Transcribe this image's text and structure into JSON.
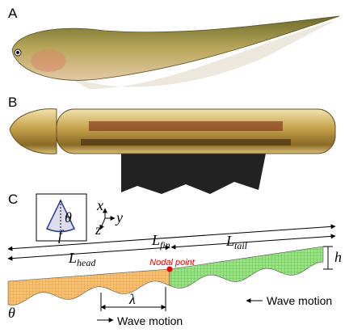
{
  "panels": [
    {
      "label": "A"
    },
    {
      "label": "B"
    },
    {
      "label": "C"
    }
  ],
  "inset": {
    "angle": "θ",
    "frequency": "f"
  },
  "axes": {
    "x": "x",
    "y": "y",
    "z": "z"
  },
  "dimensions": {
    "fin": {
      "symbol": "L",
      "sub": "fin"
    },
    "head": {
      "symbol": "L",
      "sub": "head"
    },
    "tail": {
      "symbol": "L",
      "sub": "tail"
    },
    "height": "h",
    "wavelength": "λ",
    "angle": "θ"
  },
  "nodal_point": "Nodal point",
  "wave_motion": [
    "Wave motion",
    "Wave motion"
  ]
}
